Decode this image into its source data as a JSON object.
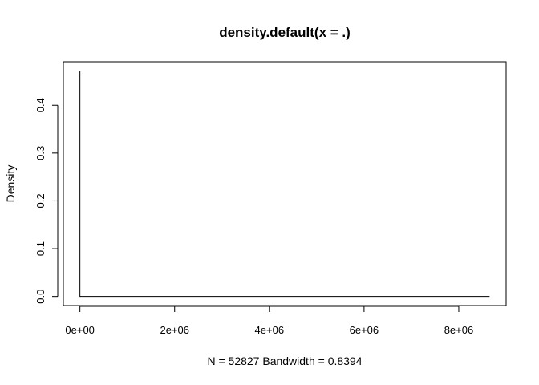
{
  "chart_data": {
    "type": "line",
    "title": "density.default(x = .)",
    "xlabel": "N = 52827   Bandwidth = 0.8394",
    "ylabel": "Density",
    "xlim": [
      -350000,
      9000000
    ],
    "ylim": [
      -0.019,
      0.491
    ],
    "x_ticks": [
      {
        "value": 0,
        "label": "0e+00"
      },
      {
        "value": 2000000,
        "label": "2e+06"
      },
      {
        "value": 4000000,
        "label": "4e+06"
      },
      {
        "value": 6000000,
        "label": "6e+06"
      },
      {
        "value": 8000000,
        "label": "8e+06"
      }
    ],
    "y_ticks": [
      {
        "value": 0.0,
        "label": "0.0"
      },
      {
        "value": 0.1,
        "label": "0.1"
      },
      {
        "value": 0.2,
        "label": "0.2"
      },
      {
        "value": 0.3,
        "label": "0.3"
      },
      {
        "value": 0.4,
        "label": "0.4"
      }
    ],
    "grid": false,
    "legend": "none",
    "series": [
      {
        "color": "#000000",
        "x": [
          -2.5,
          0,
          2.5,
          20000,
          8650000
        ],
        "y": [
          0,
          0.472,
          0,
          0,
          0
        ]
      }
    ]
  }
}
